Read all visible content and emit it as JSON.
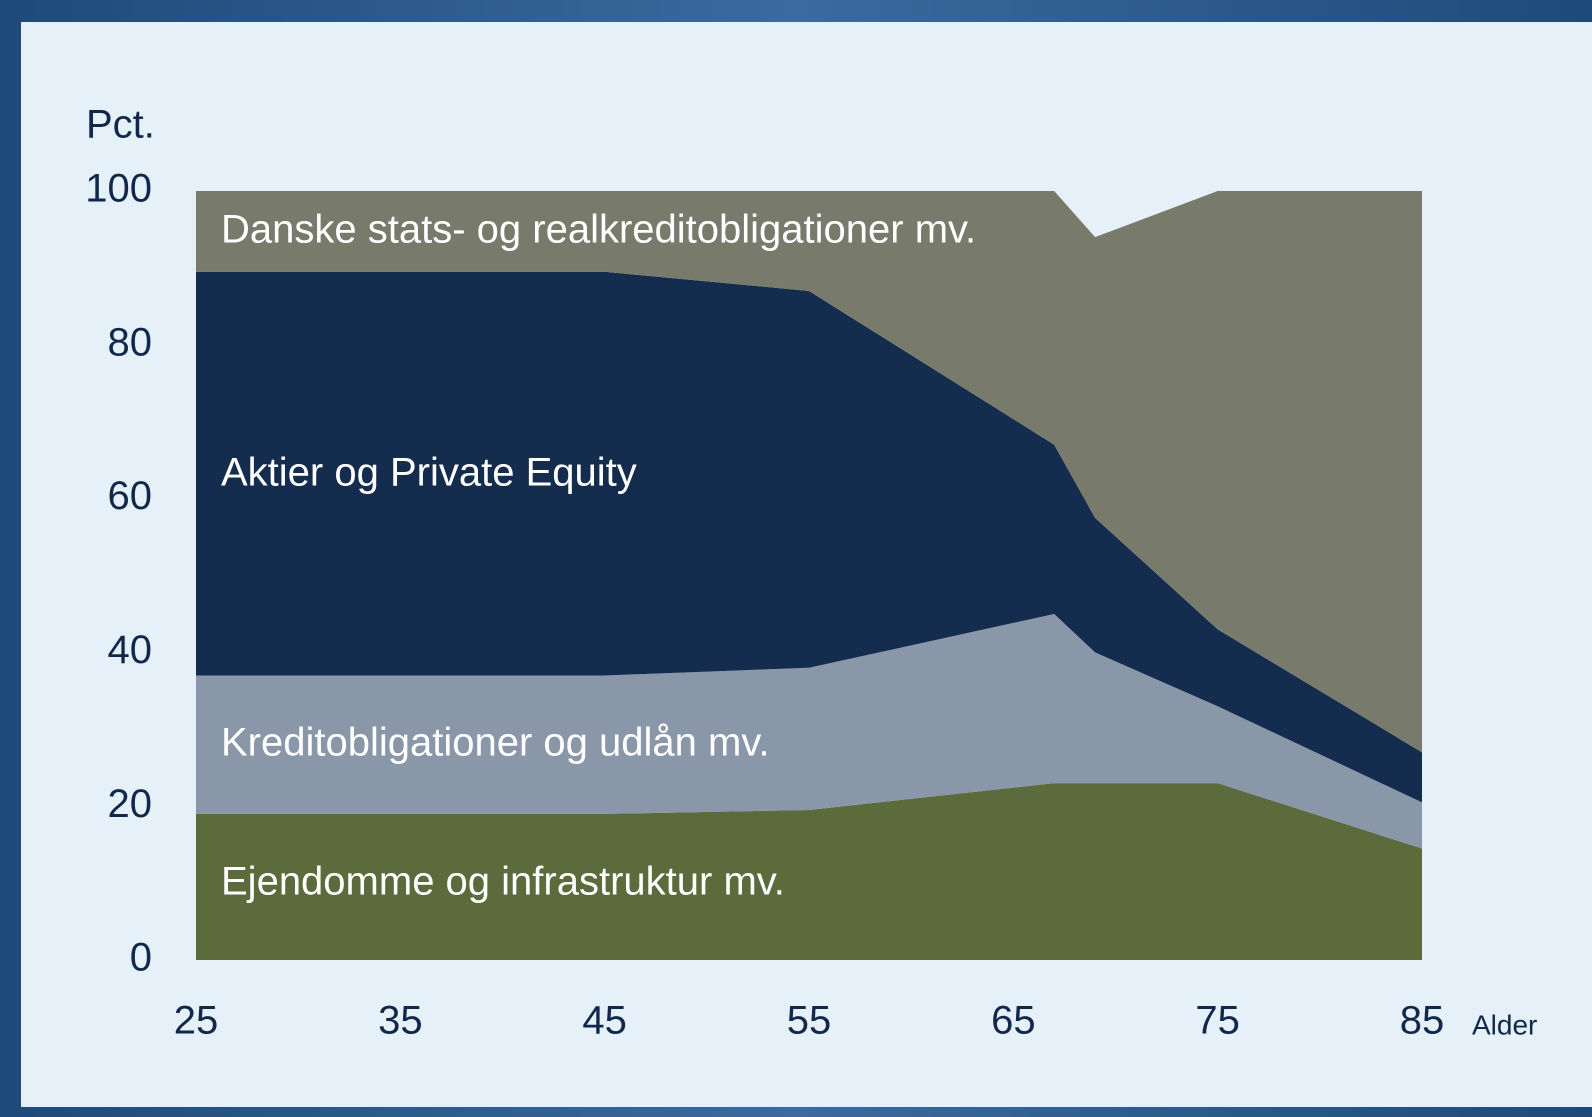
{
  "chart_data": {
    "type": "stacked_area",
    "ylabel": "Pct.",
    "xlabel": "Alder",
    "x": [
      25,
      45,
      55,
      67,
      69,
      75,
      85
    ],
    "series": [
      {
        "name": "Ejendomme og infrastruktur mv.",
        "color": "#5b6b3c",
        "values": [
          19,
          19,
          19.5,
          23,
          23,
          23,
          14.5
        ]
      },
      {
        "name": "Kreditobligationer og udlån mv.",
        "color": "#8a97a8",
        "values": [
          18,
          18,
          18.5,
          22,
          17,
          10,
          6
        ]
      },
      {
        "name": "Aktier og Private Equity",
        "color": "#142c4e",
        "values": [
          52.5,
          52.5,
          49,
          22,
          17.5,
          10,
          6.5
        ]
      },
      {
        "name": "Danske stats- og realkreditobligationer mv.",
        "color": "#787b6c",
        "values": [
          10.5,
          10.5,
          13,
          33,
          36.5,
          57,
          73
        ]
      }
    ],
    "xlim": [
      25,
      85
    ],
    "xticks": [
      25,
      35,
      45,
      55,
      65,
      75,
      85
    ],
    "ylim": [
      0,
      100
    ],
    "yticks": [
      0,
      20,
      40,
      60,
      80,
      100
    ]
  }
}
